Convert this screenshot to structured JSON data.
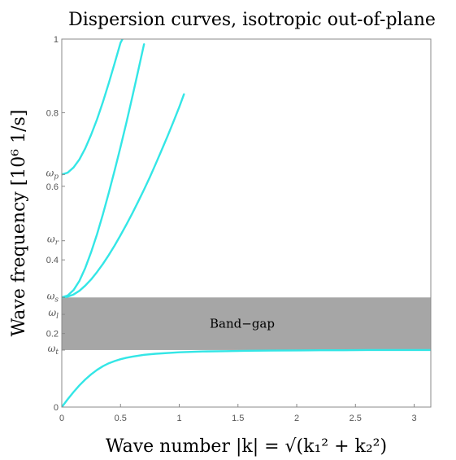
{
  "chart_data": {
    "type": "line",
    "title": "Dispersion curves, isotropic out-of-plane",
    "xlabel": "Wave number |k| = √(k₁² + k₂²)",
    "ylabel": "Wave frequency [10⁶ 1/s]",
    "xlim": [
      0,
      3.14159
    ],
    "ylim": [
      0,
      1
    ],
    "x_ticks": [
      0,
      0.5,
      1,
      1.5,
      2,
      2.5,
      3
    ],
    "x_tick_labels": [
      "0",
      "0.5",
      "1",
      "1.5",
      "2",
      "2.5",
      "3"
    ],
    "y_ticks": [
      0,
      0.2,
      0.4,
      0.6,
      0.8,
      1
    ],
    "y_tick_labels": [
      "0",
      "0.2",
      "0.4",
      "0.6",
      "0.8",
      "1"
    ],
    "symbolic_ticks": [
      {
        "label": "ω_p",
        "value": 0.632
      },
      {
        "label": "ω_r",
        "value": 0.452
      },
      {
        "label": "ω_s",
        "value": 0.298
      },
      {
        "label": "ω_l",
        "value": 0.252
      },
      {
        "label": "ω_t",
        "value": 0.155
      }
    ],
    "band_gap": {
      "label": "Band−gap",
      "y_from": 0.155,
      "y_to": 0.298,
      "color": "#a6a6a6"
    },
    "series_color": "#33e6e6",
    "grid": false,
    "series": [
      {
        "x": [
          0,
          0.05,
          0.1,
          0.15,
          0.2,
          0.25,
          0.3,
          0.35,
          0.4,
          0.45,
          0.5,
          0.55,
          0.6,
          0.7,
          0.8,
          1.0,
          1.2,
          1.4,
          1.6,
          1.8,
          2.0,
          2.2,
          2.4,
          2.6,
          2.8,
          3.0,
          3.14
        ],
        "y": [
          0,
          0.021,
          0.041,
          0.059,
          0.075,
          0.089,
          0.101,
          0.111,
          0.119,
          0.125,
          0.13,
          0.134,
          0.137,
          0.142,
          0.145,
          0.149,
          0.151,
          0.152,
          0.153,
          0.1535,
          0.154,
          0.1545,
          0.1545,
          0.155,
          0.155,
          0.155,
          0.155
        ]
      },
      {
        "x": [
          0,
          0.05,
          0.1,
          0.15,
          0.2,
          0.25,
          0.3,
          0.35,
          0.4,
          0.45,
          0.5,
          0.55,
          0.6,
          0.65,
          0.7,
          0.75,
          0.8,
          0.85,
          0.9,
          0.95,
          1.0,
          1.04
        ],
        "y": [
          0.298,
          0.3,
          0.306,
          0.316,
          0.33,
          0.347,
          0.367,
          0.389,
          0.413,
          0.439,
          0.467,
          0.496,
          0.526,
          0.558,
          0.591,
          0.625,
          0.661,
          0.698,
          0.736,
          0.775,
          0.815,
          0.85
        ]
      },
      {
        "x": [
          0,
          0.05,
          0.1,
          0.15,
          0.2,
          0.25,
          0.3,
          0.35,
          0.4,
          0.45,
          0.5,
          0.55,
          0.6,
          0.65,
          0.7
        ],
        "y": [
          0.298,
          0.303,
          0.318,
          0.343,
          0.378,
          0.421,
          0.47,
          0.524,
          0.582,
          0.643,
          0.707,
          0.773,
          0.842,
          0.913,
          0.986
        ]
      },
      {
        "x": [
          0,
          0.05,
          0.1,
          0.15,
          0.2,
          0.25,
          0.3,
          0.35,
          0.4,
          0.45,
          0.5,
          0.55
        ],
        "y": [
          0.632,
          0.637,
          0.651,
          0.673,
          0.703,
          0.74,
          0.782,
          0.829,
          0.88,
          0.934,
          0.99,
          1.02
        ]
      }
    ]
  }
}
